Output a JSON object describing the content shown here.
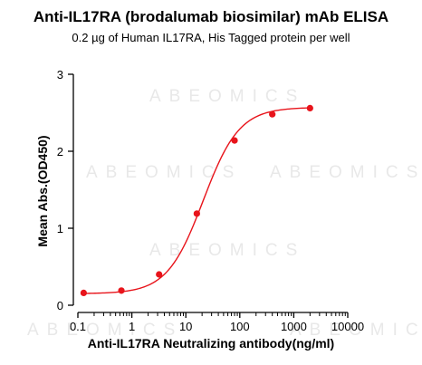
{
  "chart_data": {
    "type": "scatter",
    "title": "Anti-IL17RA (brodalumab biosimilar) mAb ELISA",
    "subtitle": "0.2 µg of Human IL17RA, His Tagged protein per well",
    "xlabel": "Anti-IL17RA Neutralizing antibody(ng/ml)",
    "ylabel": "Mean Abs.(OD450)",
    "xscale": "log",
    "xlim": [
      0.1,
      10000
    ],
    "ylim": [
      0,
      3
    ],
    "x_ticks": [
      {
        "value": 0.1,
        "label": "0.1"
      },
      {
        "value": 1,
        "label": "1"
      },
      {
        "value": 10,
        "label": "10"
      },
      {
        "value": 100,
        "label": "100"
      },
      {
        "value": 1000,
        "label": "1000"
      },
      {
        "value": 10000,
        "label": "10000"
      }
    ],
    "y_ticks": [
      {
        "value": 0,
        "label": "0"
      },
      {
        "value": 1,
        "label": "1"
      },
      {
        "value": 2,
        "label": "2"
      },
      {
        "value": 3,
        "label": "3"
      }
    ],
    "grid": false,
    "color": "#e8141b",
    "series": [
      {
        "x": [
          0.128,
          0.64,
          3.2,
          16,
          80,
          400,
          2000
        ],
        "y": [
          0.16,
          0.19,
          0.4,
          1.19,
          2.14,
          2.48,
          2.56
        ],
        "fit": "4PL sigmoid"
      }
    ]
  },
  "watermark": "ABEOMICS"
}
